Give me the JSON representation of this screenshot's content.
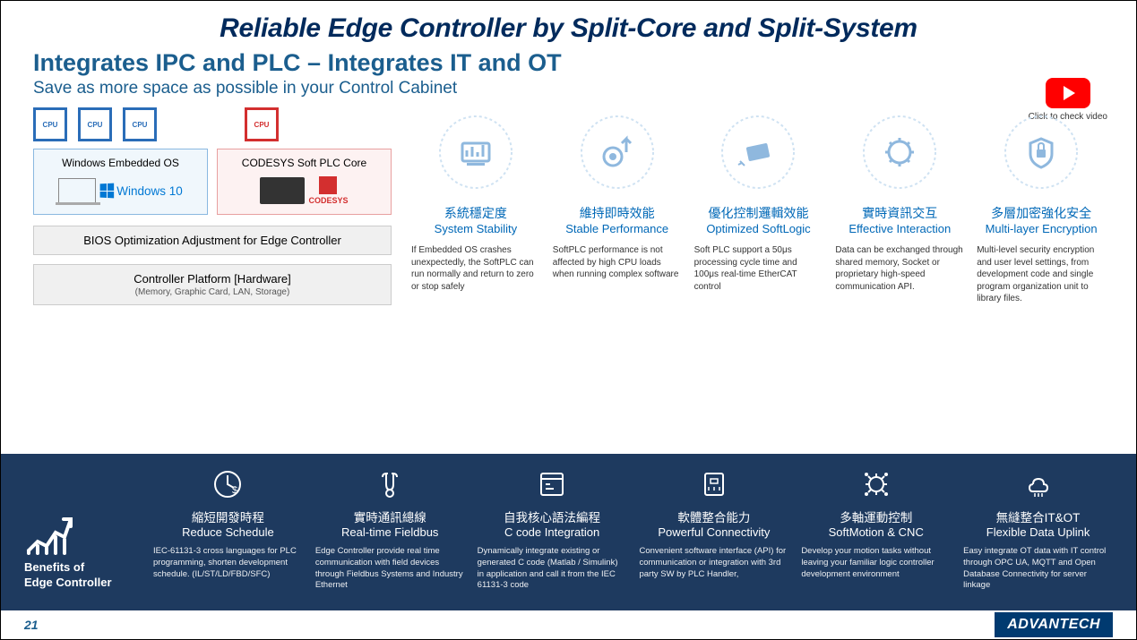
{
  "title": "Reliable Edge Controller by Split-Core and Split-System",
  "subtitle": "Integrates IPC and PLC – Integrates IT and OT",
  "tagline": "Save as more space as possible in your Control Cabinet",
  "ytLabel": "Click to check video",
  "chipLabel": "CPU",
  "card": {
    "winTitle": "Windows Embedded OS",
    "winOs": "Windows 10",
    "plcTitle": "CODESYS Soft PLC Core",
    "plcName": "CODESYS"
  },
  "bar1": "BIOS Optimization Adjustment for Edge Controller",
  "bar2": "Controller Platform [Hardware]",
  "bar2sub": "(Memory, Graphic Card, LAN, Storage)",
  "features": [
    {
      "zh": "系統穩定度",
      "en": "System Stability",
      "dsc": "If Embedded OS crashes unexpectedly, the SoftPLC can run normally and return to zero or stop safely"
    },
    {
      "zh": "維持即時效能",
      "en": "Stable Performance",
      "dsc": "SoftPLC performance is not affected by high CPU loads when running complex software"
    },
    {
      "zh": "優化控制邏輯效能",
      "en": "Optimized SoftLogic",
      "dsc": "Soft PLC support a 50μs processing cycle time and 100μs real-time EtherCAT control"
    },
    {
      "zh": "實時資訊交互",
      "en": "Effective Interaction",
      "dsc": "Data can be exchanged through shared memory, Socket or proprietary high-speed communication API."
    },
    {
      "zh": "多層加密強化安全",
      "en": "Multi-layer Encryption",
      "dsc": "Multi-level security encryption and user level settings, from development code and single program organization unit to library files."
    }
  ],
  "benefitsTitle": "Benefits of\nEdge Controller",
  "benefits": [
    {
      "zh": "縮短開發時程",
      "en": "Reduce Schedule",
      "dsc": "IEC-61131-3 cross languages for PLC programming, shorten development schedule. (IL/ST/LD/FBD/SFC)"
    },
    {
      "zh": "實時通訊總線",
      "en": "Real-time Fieldbus",
      "dsc": "Edge Controller provide real time communication with field devices through Fieldbus Systems and Industry Ethernet"
    },
    {
      "zh": "自我核心語法編程",
      "en": "C code Integration",
      "dsc": "Dynamically integrate existing or generated C code (Matlab / Simulink) in application and call it from the IEC 61131-3 code"
    },
    {
      "zh": "軟體整合能力",
      "en": "Powerful Connectivity",
      "dsc": "Convenient software interface (API) for communication or integration with 3rd party SW by PLC Handler,"
    },
    {
      "zh": "多軸運動控制",
      "en": "SoftMotion & CNC",
      "dsc": "Develop your motion tasks without leaving your familiar logic controller development environment"
    },
    {
      "zh": "無縫整合IT&OT",
      "en": "Flexible Data Uplink",
      "dsc": "Easy integrate OT data with IT control through OPC UA, MQTT and Open Database Connectivity for server linkage"
    }
  ],
  "pageNum": "21",
  "brand": "ADVANTECH",
  "colors": {
    "accent": "#1b5e8e",
    "dark": "#002a5c",
    "feat": "#0068b7",
    "btm": "#1e3a5f",
    "icon": "#8fb8de"
  }
}
